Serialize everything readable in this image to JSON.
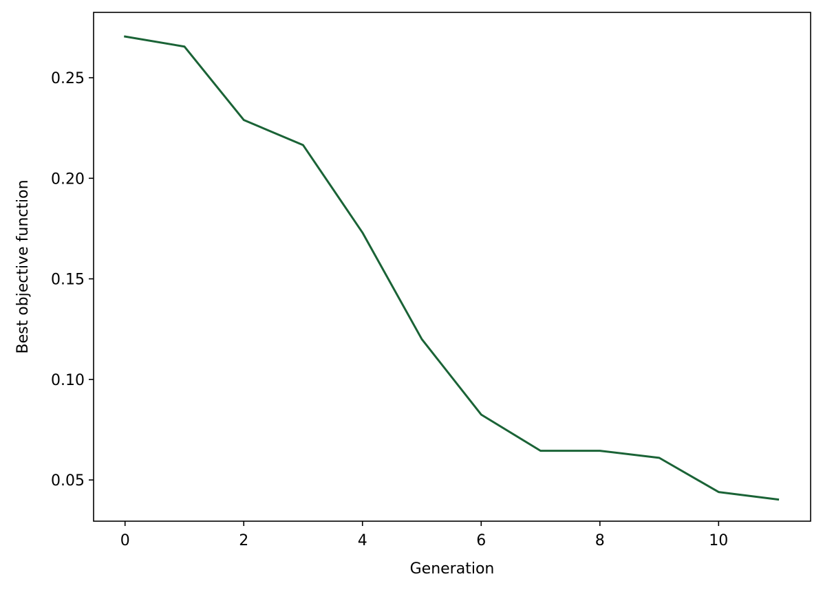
{
  "chart_data": {
    "type": "line",
    "title": "",
    "xlabel": "Generation",
    "ylabel": "Best objective function",
    "xlim": [
      -0.53,
      11.55
    ],
    "ylim": [
      0.0295,
      0.2825
    ],
    "xticks": [
      0,
      2,
      4,
      6,
      8,
      10
    ],
    "xtick_labels": [
      "0",
      "2",
      "4",
      "6",
      "8",
      "10"
    ],
    "yticks": [
      0.05,
      0.1,
      0.15,
      0.2,
      0.25
    ],
    "ytick_labels": [
      "0.05",
      "0.10",
      "0.15",
      "0.20",
      "0.25"
    ],
    "grid": false,
    "series": [
      {
        "color": "#1a6336",
        "x": [
          0,
          1,
          2,
          3,
          4,
          5,
          6,
          7,
          8,
          9,
          10,
          11
        ],
        "y": [
          0.2705,
          0.2655,
          0.229,
          0.2165,
          0.173,
          0.12,
          0.0825,
          0.0645,
          0.0645,
          0.061,
          0.044,
          0.0403
        ]
      }
    ]
  }
}
